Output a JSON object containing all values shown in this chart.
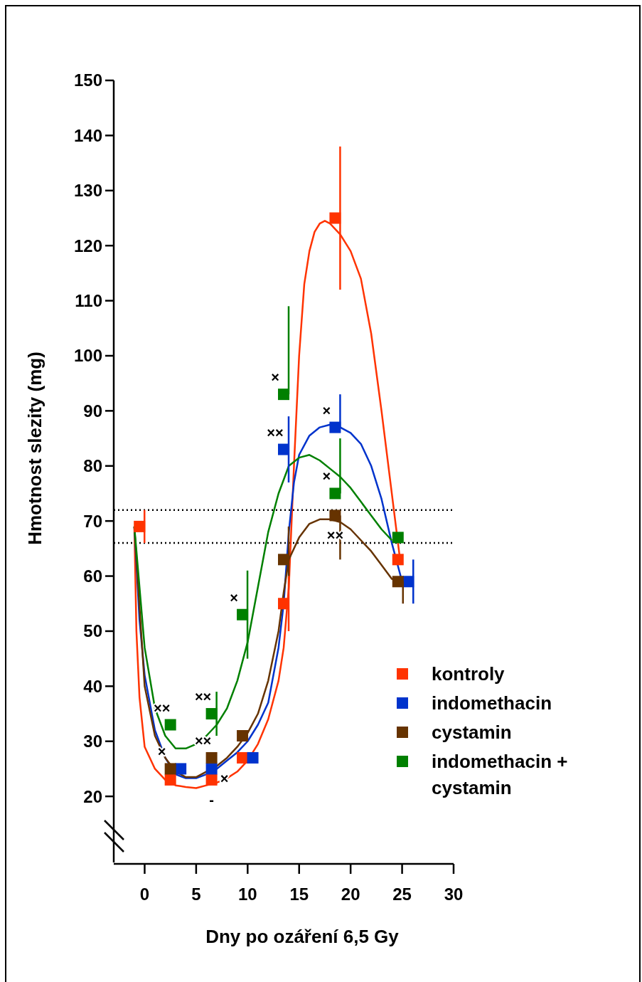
{
  "chart_data": {
    "type": "scatter",
    "xlabel": "Dny po ozáření 6,5 Gy",
    "ylabel": "Hmotnost slezity  (mg)",
    "xlim": [
      -3,
      30
    ],
    "xticks": [
      0,
      5,
      10,
      15,
      20,
      25,
      30
    ],
    "ylim": [
      8,
      150
    ],
    "yticks": [
      20,
      30,
      40,
      50,
      60,
      70,
      80,
      90,
      100,
      110,
      120,
      130,
      140,
      150
    ],
    "grid": false,
    "legend": "bottom right",
    "marker": "square",
    "ref_lines": [
      {
        "axis": "y",
        "value": 72,
        "line_style": "dotted",
        "color": "#000000"
      },
      {
        "axis": "y",
        "value": 66,
        "line_style": "dotted",
        "color": "#000000"
      }
    ],
    "series": [
      {
        "name": "kontroly",
        "color": "#ff3300",
        "x": [
          -0.5,
          2.5,
          6.5,
          9.5,
          13.5,
          18.5,
          24.6
        ],
        "values": [
          69,
          23,
          23,
          27,
          55,
          125,
          63
        ],
        "errors": [
          [
            66,
            72
          ],
          null,
          null,
          null,
          [
            50,
            60
          ],
          [
            112,
            138
          ],
          null
        ],
        "value_labels": [
          null,
          null,
          "-",
          null,
          null,
          null,
          null
        ]
      },
      {
        "name": "indomethacin",
        "color": "#0033cc",
        "x": [
          3.5,
          6.5,
          10.5,
          13.5,
          18.5,
          25.6
        ],
        "values": [
          25,
          25,
          27,
          83,
          87,
          59
        ],
        "errors": [
          null,
          null,
          null,
          [
            77,
            89
          ],
          [
            87,
            93
          ],
          [
            55,
            63
          ]
        ],
        "value_labels": [
          null,
          "×",
          null,
          "××",
          "×",
          null
        ]
      },
      {
        "name": "cystamin",
        "color": "#663300",
        "x": [
          2.5,
          6.5,
          9.5,
          13.5,
          18.5,
          24.6
        ],
        "values": [
          25,
          27,
          31,
          63,
          71,
          59
        ],
        "errors": [
          null,
          null,
          null,
          [
            60,
            69
          ],
          [
            63,
            71
          ],
          [
            55,
            59
          ]
        ],
        "value_labels": [
          "×",
          "××",
          null,
          null,
          "××",
          null
        ]
      },
      {
        "name": "indomethacin + cystamin",
        "color": "#008000",
        "x": [
          2.5,
          6.5,
          9.5,
          13.5,
          18.5,
          24.6
        ],
        "values": [
          33,
          35,
          53,
          93,
          75,
          67
        ],
        "errors": [
          null,
          [
            31,
            39
          ],
          [
            45,
            61
          ],
          [
            93,
            109
          ],
          [
            75,
            85
          ],
          null
        ],
        "value_labels": [
          "××",
          "××",
          "×",
          "×",
          "×",
          null
        ]
      },
      {
        "type": "line",
        "marker": "none",
        "color": "#ff3300",
        "x": [
          -1,
          -0.8,
          -0.5,
          0,
          1,
          2,
          3,
          4,
          5,
          6,
          7,
          8,
          9,
          10,
          11,
          12,
          13,
          13.5,
          14,
          14.5,
          15,
          15.5,
          16,
          16.5,
          17,
          17.5,
          18,
          19,
          20,
          21,
          22,
          23,
          24,
          24.8
        ],
        "values": [
          69,
          50,
          38,
          29,
          25,
          23,
          22,
          21.7,
          21.5,
          22,
          22.5,
          23.3,
          24.5,
          26.5,
          29.5,
          34,
          41,
          47,
          58,
          80,
          100,
          113,
          119,
          122.5,
          124,
          124.5,
          124,
          122,
          119,
          114,
          104,
          90,
          75,
          63
        ]
      },
      {
        "type": "line",
        "marker": "none",
        "color": "#0033cc",
        "x": [
          -1,
          -0.5,
          0,
          1,
          2,
          3,
          4,
          5,
          6,
          7,
          8,
          9,
          10,
          11,
          12,
          13,
          13.5,
          14,
          14.5,
          15,
          16,
          17,
          18,
          19,
          20,
          21,
          22,
          23,
          24,
          25
        ],
        "values": [
          69,
          52,
          42,
          32,
          27,
          24,
          23.3,
          23.3,
          24,
          25,
          26.5,
          28,
          30,
          33,
          37,
          47,
          55,
          68,
          77,
          82,
          85.5,
          87,
          87.5,
          87,
          86,
          84,
          80,
          74,
          66,
          59
        ]
      },
      {
        "type": "line",
        "marker": "none",
        "color": "#663300",
        "x": [
          -1,
          0,
          1,
          2,
          3,
          4,
          5,
          6,
          7,
          8,
          9,
          10,
          11,
          12,
          13,
          13.5,
          14,
          15,
          16,
          17,
          18,
          19,
          20,
          21,
          22,
          23,
          24,
          25
        ],
        "values": [
          69,
          40,
          31,
          27,
          24.5,
          23.5,
          23.5,
          24.5,
          25.5,
          27,
          29,
          31.5,
          35,
          41,
          50,
          57,
          63,
          67,
          69.5,
          70.3,
          70.3,
          69.8,
          68.5,
          66.5,
          64.5,
          62,
          59.5,
          59
        ]
      },
      {
        "type": "line",
        "marker": "none",
        "color": "#008000",
        "x": [
          -1,
          0,
          1,
          2,
          3,
          4,
          5,
          6,
          7,
          8,
          9,
          10,
          11,
          12,
          13,
          14,
          15,
          16,
          17,
          18,
          19,
          20,
          21,
          22,
          23,
          24
        ],
        "values": [
          69,
          47,
          36,
          31,
          28.7,
          28.7,
          29.5,
          31,
          33,
          36,
          41,
          48,
          58,
          68,
          75,
          80,
          81.5,
          82,
          81,
          79.5,
          78,
          76,
          73.5,
          71,
          68.5,
          66.5
        ]
      }
    ]
  }
}
